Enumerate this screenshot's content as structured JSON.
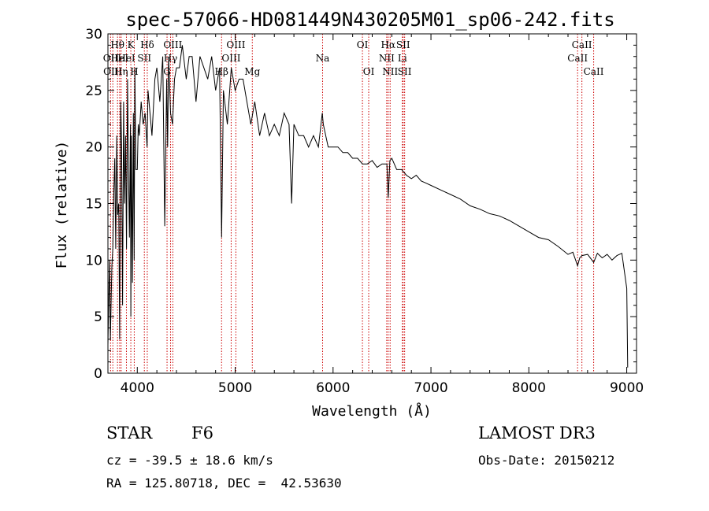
{
  "chart_data": {
    "type": "line",
    "title": "spec-57066-HD081449N430205M01_sp06-242.fits",
    "xlabel": "Wavelength (Å)",
    "ylabel": "Flux (relative)",
    "xlim": [
      3700,
      9100
    ],
    "ylim": [
      0,
      30
    ],
    "xticks": [
      4000,
      5000,
      6000,
      7000,
      8000,
      9000
    ],
    "yticks": [
      0,
      5,
      10,
      15,
      20,
      25,
      30
    ],
    "series": [
      {
        "name": "flux",
        "x": [
          3700,
          3715,
          3725,
          3740,
          3750,
          3760,
          3770,
          3780,
          3790,
          3800,
          3810,
          3820,
          3830,
          3840,
          3850,
          3860,
          3870,
          3880,
          3890,
          3900,
          3910,
          3920,
          3930,
          3934,
          3940,
          3950,
          3960,
          3968,
          3975,
          3985,
          4000,
          4010,
          4020,
          4040,
          4060,
          4080,
          4100,
          4110,
          4130,
          4150,
          4180,
          4200,
          4230,
          4260,
          4280,
          4300,
          4310,
          4320,
          4340,
          4360,
          4380,
          4400,
          4430,
          4460,
          4500,
          4530,
          4560,
          4600,
          4640,
          4680,
          4720,
          4760,
          4800,
          4840,
          4861,
          4880,
          4920,
          4960,
          5000,
          5040,
          5080,
          5120,
          5160,
          5200,
          5250,
          5300,
          5350,
          5400,
          5450,
          5500,
          5550,
          5577,
          5600,
          5650,
          5700,
          5750,
          5800,
          5850,
          5890,
          5900,
          5950,
          6000,
          6050,
          6100,
          6150,
          6200,
          6250,
          6300,
          6350,
          6400,
          6450,
          6500,
          6550,
          6563,
          6580,
          6600,
          6650,
          6700,
          6750,
          6800,
          6850,
          6900,
          6950,
          7000,
          7100,
          7200,
          7300,
          7400,
          7500,
          7600,
          7700,
          7800,
          7900,
          8000,
          8100,
          8200,
          8300,
          8400,
          8450,
          8498,
          8520,
          8542,
          8600,
          8662,
          8700,
          8750,
          8800,
          8850,
          8900,
          8950,
          9000,
          9010
        ],
        "values": [
          2.5,
          10,
          3,
          9.5,
          11,
          16,
          19,
          11,
          21,
          14,
          15,
          3,
          24,
          20,
          6,
          24,
          15,
          21,
          11,
          26,
          18,
          12,
          22,
          5,
          21,
          8,
          23,
          10,
          27,
          18,
          18,
          22,
          21,
          24,
          22,
          23,
          20,
          25,
          23,
          21,
          26,
          27,
          24,
          28,
          13,
          26,
          20,
          28,
          23,
          22,
          26,
          27,
          27,
          29,
          26,
          28,
          28,
          24,
          28,
          27,
          26,
          28,
          25,
          27,
          12,
          25,
          22,
          27,
          25,
          26,
          26,
          24,
          22,
          24,
          21,
          23,
          21,
          22,
          21,
          23,
          22,
          15,
          22,
          21,
          21,
          20,
          21,
          20,
          23,
          22,
          20,
          20,
          20,
          19.5,
          19.5,
          19,
          19,
          18.5,
          18.5,
          18.8,
          18.2,
          18.5,
          18.5,
          15.5,
          18.8,
          19,
          18,
          18,
          17.5,
          17.2,
          17.5,
          17,
          16.8,
          16.6,
          16.2,
          15.8,
          15.4,
          14.8,
          14.5,
          14.1,
          13.9,
          13.5,
          13.0,
          12.5,
          12.0,
          11.8,
          11.2,
          10.5,
          10.7,
          9.5,
          10.2,
          10.4,
          10.5,
          9.8,
          10.6,
          10.2,
          10.5,
          10.0,
          10.4,
          10.6,
          7.5,
          0.5
        ]
      }
    ],
    "line_markers": [
      {
        "wavelength": 3727,
        "label": "OII",
        "row": 2
      },
      {
        "wavelength": 3750,
        "label": "OIII",
        "row": 3
      },
      {
        "wavelength": 3798,
        "label": "Hθ",
        "row": 1
      },
      {
        "wavelength": 3820,
        "label": "HeI",
        "row": 2
      },
      {
        "wavelength": 3835,
        "label": "Hη",
        "row": 3
      },
      {
        "wavelength": 3889,
        "label": "HeI",
        "row": 2
      },
      {
        "wavelength": 3934,
        "label": "K",
        "row": 1
      },
      {
        "wavelength": 3969,
        "label": "H",
        "row": 3
      },
      {
        "wavelength": 4072,
        "label": "SII",
        "row": 2
      },
      {
        "wavelength": 4102,
        "label": "Hδ",
        "row": 1
      },
      {
        "wavelength": 4304,
        "label": "G",
        "row": 3
      },
      {
        "wavelength": 4340,
        "label": "Hγ",
        "row": 2
      },
      {
        "wavelength": 4363,
        "label": "OIII",
        "row": 1
      },
      {
        "wavelength": 4861,
        "label": "Hβ",
        "row": 3
      },
      {
        "wavelength": 4959,
        "label": "OIII",
        "row": 2
      },
      {
        "wavelength": 5007,
        "label": "OIII",
        "row": 1
      },
      {
        "wavelength": 5175,
        "label": "Mg",
        "row": 3
      },
      {
        "wavelength": 5893,
        "label": "Na",
        "row": 2
      },
      {
        "wavelength": 6300,
        "label": "OI",
        "row": 1
      },
      {
        "wavelength": 6364,
        "label": "OI",
        "row": 3
      },
      {
        "wavelength": 6548,
        "label": "NII",
        "row": 2
      },
      {
        "wavelength": 6563,
        "label": "Hα",
        "row": 1
      },
      {
        "wavelength": 6583,
        "label": "NII",
        "row": 3
      },
      {
        "wavelength": 6708,
        "label": "Li",
        "row": 2
      },
      {
        "wavelength": 6716,
        "label": "SII",
        "row": 1
      },
      {
        "wavelength": 6731,
        "label": "SII",
        "row": 3
      },
      {
        "wavelength": 8498,
        "label": "CaII",
        "row": 2
      },
      {
        "wavelength": 8542,
        "label": "CaII",
        "row": 1
      },
      {
        "wavelength": 8662,
        "label": "CaII",
        "row": 3
      }
    ]
  },
  "info": {
    "class_label": "STAR",
    "subclass": "F6",
    "survey": "LAMOST DR3",
    "cz": "cz = -39.5 ± 18.6 km/s",
    "obs_date": "Obs-Date: 20150212",
    "coords": "RA = 125.80718, DEC =  42.53630"
  },
  "colors": {
    "marker": "#cc0000",
    "line": "#000000"
  }
}
